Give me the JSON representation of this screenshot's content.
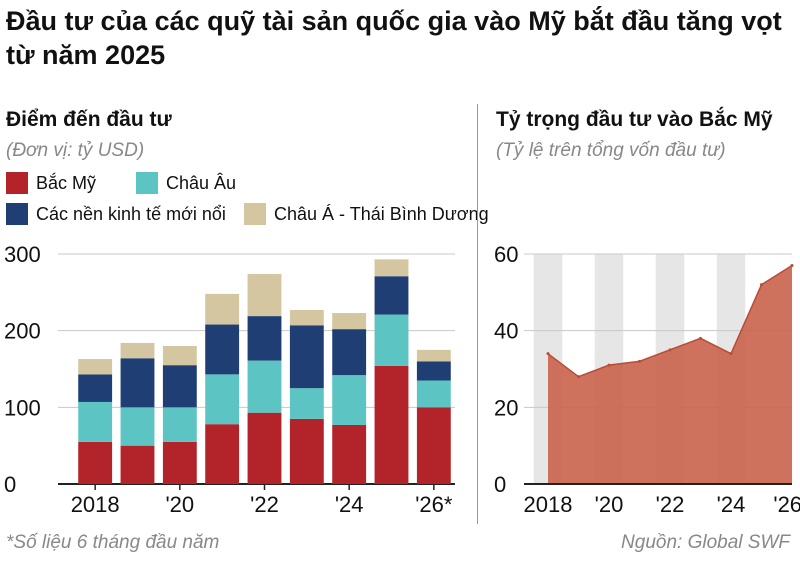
{
  "title": "Đầu tư của các quỹ tài sản quốc gia vào Mỹ bắt đầu tăng vọt từ năm 2025",
  "left_panel": {
    "heading": "Điểm đến đầu tư",
    "unit": "(Đơn vị: tỷ USD)"
  },
  "right_panel": {
    "heading": "Tỷ trọng đầu tư vào Bắc Mỹ",
    "unit": "(Tỷ lệ trên tổng vốn đầu tư)"
  },
  "legend": [
    {
      "label": "Bắc Mỹ",
      "color": "#b3232a"
    },
    {
      "label": "Châu Âu",
      "color": "#5cc4c2"
    },
    {
      "label": "Các nền kinh tế mới nổi",
      "color": "#1f3f74"
    },
    {
      "label": "Châu Á - Thái Bình Dương",
      "color": "#d4c6a0"
    }
  ],
  "footnote": "*Số liệu 6 tháng đầu năm",
  "source": "Nguồn: Global SWF",
  "chart_data": [
    {
      "type": "bar",
      "stacked": true,
      "categories": [
        "2018",
        "2019",
        "2020",
        "2021",
        "2022",
        "2023",
        "2024",
        "2025",
        "2026*"
      ],
      "tick_labels": [
        "2018",
        "'20",
        "'22",
        "'24",
        "'26*"
      ],
      "tick_categories": [
        "2018",
        "2020",
        "2022",
        "2024",
        "2026*"
      ],
      "series": [
        {
          "name": "Bắc Mỹ",
          "color": "#b3232a",
          "values": [
            55,
            50,
            55,
            78,
            93,
            85,
            77,
            154,
            100
          ]
        },
        {
          "name": "Châu Âu",
          "color": "#5cc4c2",
          "values": [
            52,
            50,
            45,
            65,
            68,
            40,
            65,
            67,
            35
          ]
        },
        {
          "name": "Các nền kinh tế mới nổi",
          "color": "#1f3f74",
          "values": [
            36,
            64,
            55,
            65,
            58,
            82,
            60,
            50,
            25
          ]
        },
        {
          "name": "Châu Á - Thái Bình Dương",
          "color": "#d4c6a0",
          "values": [
            20,
            20,
            25,
            40,
            55,
            20,
            21,
            22,
            15
          ]
        }
      ],
      "yticks": [
        0,
        100,
        200,
        300
      ],
      "ylim": [
        0,
        300
      ],
      "grid": true
    },
    {
      "type": "area",
      "x": [
        "2018",
        "2019",
        "2020",
        "2021",
        "2022",
        "2023",
        "2024",
        "2025",
        "2026*"
      ],
      "tick_labels": [
        "2018",
        "'20",
        "'22",
        "'24",
        "'26*"
      ],
      "tick_x": [
        "2018",
        "2020",
        "2022",
        "2024",
        "2026*"
      ],
      "values": [
        34,
        28,
        31,
        32,
        35,
        38,
        34,
        52,
        57
      ],
      "color": "#c9634d",
      "shaded_years": [
        "2018",
        "2020",
        "2022",
        "2024"
      ],
      "shade_color": "#e6e6e6",
      "yticks": [
        0,
        20,
        40,
        60
      ],
      "ylim": [
        0,
        60
      ],
      "grid": true
    }
  ]
}
